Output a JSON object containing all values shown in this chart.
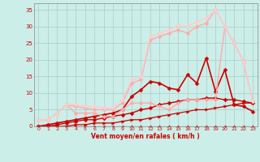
{
  "title": "",
  "xlabel": "Vent moyen/en rafales ( km/h )",
  "ylabel": "",
  "xlim": [
    -0.5,
    23.5
  ],
  "ylim": [
    0,
    37
  ],
  "yticks": [
    0,
    5,
    10,
    15,
    20,
    25,
    30,
    35
  ],
  "xticks": [
    0,
    1,
    2,
    3,
    4,
    5,
    6,
    7,
    8,
    9,
    10,
    11,
    12,
    13,
    14,
    15,
    16,
    17,
    18,
    19,
    20,
    21,
    22,
    23
  ],
  "background_color": "#cceee8",
  "grid_color": "#aacccc",
  "lines": [
    {
      "x": [
        0,
        1,
        2,
        3,
        4,
        5,
        6,
        7,
        8,
        9,
        10,
        11,
        12,
        13,
        14,
        15,
        16,
        17,
        18,
        19,
        20,
        21,
        22,
        23
      ],
      "y": [
        0,
        0,
        0,
        0,
        0,
        0,
        0,
        0,
        0,
        0,
        0,
        0,
        0,
        0,
        0,
        0,
        0,
        0,
        0,
        0,
        0,
        0,
        0,
        0
      ],
      "color": "#cc0000",
      "lw": 0.8,
      "marker": "D",
      "ms": 1.5
    },
    {
      "x": [
        0,
        1,
        2,
        3,
        4,
        5,
        6,
        7,
        8,
        9,
        10,
        11,
        12,
        13,
        14,
        15,
        16,
        17,
        18,
        19,
        20,
        21,
        22,
        23
      ],
      "y": [
        0,
        0,
        0,
        0,
        0.5,
        0.5,
        1,
        1,
        1,
        1.5,
        2,
        2,
        2.5,
        3,
        3.5,
        4,
        4.5,
        5,
        5,
        5.5,
        6,
        6.5,
        7,
        7
      ],
      "color": "#cc0000",
      "lw": 0.9,
      "marker": ">",
      "ms": 2.5
    },
    {
      "x": [
        0,
        1,
        2,
        3,
        4,
        5,
        6,
        7,
        8,
        9,
        10,
        11,
        12,
        13,
        14,
        15,
        16,
        17,
        18,
        19,
        20,
        21,
        22,
        23
      ],
      "y": [
        0,
        0,
        0.5,
        1,
        1.5,
        2,
        2,
        2.5,
        3,
        3.5,
        4,
        5,
        5.5,
        6.5,
        7,
        7.5,
        8,
        8,
        8.5,
        8.5,
        8,
        8,
        7.5,
        7
      ],
      "color": "#cc0000",
      "lw": 1.0,
      "marker": "D",
      "ms": 2.5
    },
    {
      "x": [
        0,
        1,
        2,
        3,
        4,
        5,
        6,
        7,
        8,
        9,
        10,
        11,
        12,
        13,
        14,
        15,
        16,
        17,
        18,
        19,
        20,
        21,
        22,
        23
      ],
      "y": [
        0,
        0.5,
        1,
        1.5,
        2,
        2.5,
        3,
        3.5,
        4,
        5,
        9,
        11,
        13.5,
        13,
        11.5,
        11,
        15.5,
        13,
        20.5,
        10.5,
        17,
        6.5,
        6,
        4.5
      ],
      "color": "#cc0000",
      "lw": 1.2,
      "marker": "D",
      "ms": 2.5
    },
    {
      "x": [
        0,
        1,
        2,
        3,
        4,
        5,
        6,
        7,
        8,
        9,
        10,
        11,
        12,
        13,
        14,
        15,
        16,
        17,
        18,
        19,
        20,
        21,
        22,
        23
      ],
      "y": [
        2,
        2,
        4,
        6.5,
        4,
        4,
        4,
        3,
        3,
        5,
        7,
        7,
        7,
        6,
        5,
        7,
        8,
        8,
        8,
        8,
        30,
        25,
        19.5,
        7.5
      ],
      "color": "#ffaaaa",
      "lw": 1.0,
      "marker": "D",
      "ms": 2.5
    },
    {
      "x": [
        0,
        1,
        2,
        3,
        4,
        5,
        6,
        7,
        8,
        9,
        10,
        11,
        12,
        13,
        14,
        15,
        16,
        17,
        18,
        19,
        20,
        21,
        22,
        23
      ],
      "y": [
        2,
        2,
        4,
        6.5,
        6,
        5.5,
        5,
        5,
        5,
        7,
        13,
        14,
        26,
        27,
        28,
        29,
        28,
        30,
        31,
        35,
        30,
        25,
        19.5,
        7.5
      ],
      "color": "#ffaaaa",
      "lw": 1.0,
      "marker": "D",
      "ms": 2.5
    },
    {
      "x": [
        0,
        1,
        2,
        3,
        4,
        5,
        6,
        7,
        8,
        9,
        10,
        11,
        12,
        13,
        14,
        15,
        16,
        17,
        18,
        19,
        20,
        21,
        22,
        23
      ],
      "y": [
        2,
        2,
        4,
        6.5,
        6.5,
        6,
        6,
        5.5,
        5.5,
        8,
        14,
        15,
        27,
        28,
        29,
        30.5,
        30,
        31.5,
        32.5,
        35,
        30,
        25,
        19.5,
        7.5
      ],
      "color": "#ffcccc",
      "lw": 1.0,
      "marker": "D",
      "ms": 2.5
    }
  ]
}
